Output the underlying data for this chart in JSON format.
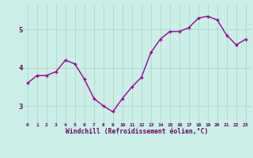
{
  "x": [
    0,
    1,
    2,
    3,
    4,
    5,
    6,
    7,
    8,
    9,
    10,
    11,
    12,
    13,
    14,
    15,
    16,
    17,
    18,
    19,
    20,
    21,
    22,
    23
  ],
  "y": [
    3.6,
    3.8,
    3.8,
    3.9,
    4.2,
    4.1,
    3.7,
    3.2,
    3.0,
    2.85,
    3.2,
    3.5,
    3.75,
    4.4,
    4.75,
    4.95,
    4.95,
    5.05,
    5.3,
    5.35,
    5.25,
    4.85,
    4.6,
    4.75
  ],
  "line_color": "#990099",
  "marker": "+",
  "marker_size": 3,
  "bg_color": "#cceee8",
  "grid_color": "#aaddcc",
  "xlabel": "Windchill (Refroidissement éolien,°C)",
  "xlabel_color": "#660066",
  "tick_color": "#660066",
  "yticks": [
    3,
    4,
    5
  ],
  "xticks": [
    0,
    1,
    2,
    3,
    4,
    5,
    6,
    7,
    8,
    9,
    10,
    11,
    12,
    13,
    14,
    15,
    16,
    17,
    18,
    19,
    20,
    21,
    22,
    23
  ],
  "xlim": [
    -0.5,
    23.5
  ],
  "ylim": [
    2.55,
    5.65
  ],
  "line_width": 1.0
}
